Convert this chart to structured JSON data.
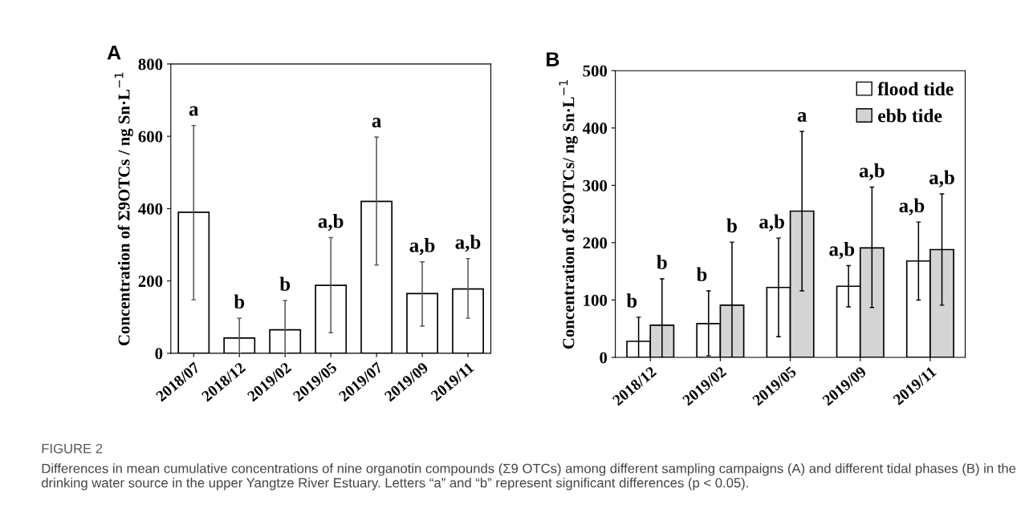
{
  "chart_data": [
    {
      "type": "bar",
      "title": "A",
      "ylabel": "Concentration of Σ9OTCs / ng Sn·L$^{−1}$",
      "categories": [
        "2018/07",
        "2018/12",
        "2019/02",
        "2019/05",
        "2019/07",
        "2019/09",
        "2019/11"
      ],
      "values": [
        390,
        42,
        65,
        188,
        420,
        165,
        178
      ],
      "color": "#ffffff",
      "errors": [
        [
          148,
          630
        ],
        [
          0,
          97
        ],
        [
          0,
          146
        ],
        [
          57,
          320
        ],
        [
          244,
          598
        ],
        [
          75,
          253
        ],
        [
          97,
          262
        ]
      ],
      "ylim": [
        0,
        800
      ],
      "yticks": [
        0,
        200,
        400,
        600,
        800
      ],
      "grid": false,
      "legend": false,
      "annotations": [
        "FIGURE 2",
        "Differences in mean cumulative concentrations of nine organotin compounds (Σ9 OTCs) among different sampling campaigns (A) and different tidal phases (B) in the drinking water source in the upper Yangtze River Estuary. Letters “a” and “b” represent significant differences (p < 0.05).",
        {
          "text": "a",
          "x": "2018/07",
          "y": 630
        },
        {
          "text": "b",
          "x": "2018/12",
          "y": 97
        },
        {
          "text": "b",
          "x": "2019/02",
          "y": 146
        },
        {
          "text": "a,b",
          "x": "2019/05",
          "y": 320
        },
        {
          "text": "a",
          "x": "2019/07",
          "y": 598
        },
        {
          "text": "a,b",
          "x": "2019/09",
          "y": 253
        },
        {
          "text": "a,b",
          "x": "2019/11",
          "y": 262
        }
      ]
    },
    {
      "type": "bar",
      "title": "B",
      "ylabel": "Concentration of Σ9OTCs/ ng Sn·L$^{−1}$",
      "categories": [
        "2018/12",
        "2019/02",
        "2019/05",
        "2019/09",
        "2019/11"
      ],
      "series": [
        {
          "name": "flood tide",
          "color": "#ffffff",
          "values": [
            28,
            59,
            122,
            124,
            168
          ],
          "errors": [
            [
              0,
              70
            ],
            [
              3,
              116
            ],
            [
              36,
              208
            ],
            [
              88,
              160
            ],
            [
              100,
              236
            ]
          ]
        },
        {
          "name": "ebb tide",
          "color": "#d4d4d4",
          "values": [
            56,
            91,
            255,
            191,
            188
          ],
          "errors": [
            [
              0,
              137
            ],
            [
              0,
              201
            ],
            [
              116,
              394
            ],
            [
              87,
              297
            ],
            [
              91,
              285
            ]
          ]
        }
      ],
      "annotations": [
        "b",
        "b",
        "b",
        "b",
        "a,b",
        "a",
        "a,b",
        "a,b",
        "a,b",
        "a,b"
      ],
      "ylim": [
        0,
        500
      ],
      "yticks": [
        0,
        100,
        200,
        300,
        400,
        500
      ],
      "grid": false,
      "legend": "top right"
    }
  ]
}
